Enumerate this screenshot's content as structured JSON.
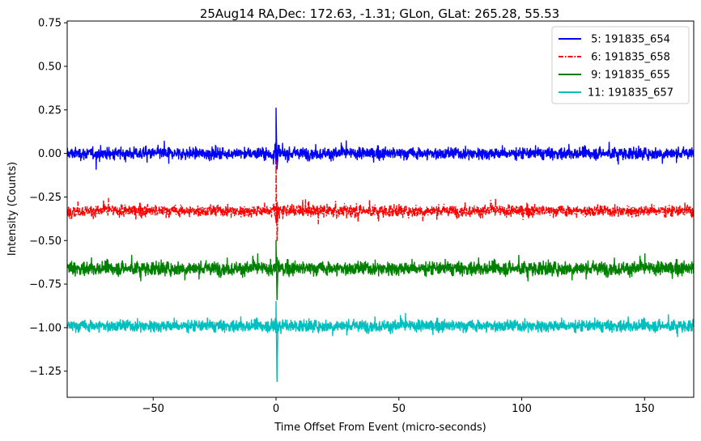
{
  "chart_data": {
    "type": "line",
    "title": "25Aug14 RA,Dec:  172.63,  -1.31; GLon, GLat:  265.28,  55.53",
    "xlabel": "Time Offset From Event (micro-seconds)",
    "ylabel": "Intensity (Counts)",
    "xlim": [
      -85,
      170
    ],
    "ylim": [
      -1.4,
      0.76
    ],
    "xticks": [
      -50,
      0,
      50,
      100,
      150
    ],
    "xtick_labels": [
      "−50",
      "0",
      "50",
      "100",
      "150"
    ],
    "yticks": [
      0.75,
      0.5,
      0.25,
      0.0,
      -0.25,
      -0.5,
      -0.75,
      -1.0,
      -1.25
    ],
    "ytick_labels": [
      "0.75",
      "0.50",
      "0.25",
      "0.00",
      "−0.25",
      "−0.50",
      "−0.75",
      "−1.00",
      "−1.25"
    ],
    "legend_position": "top-right",
    "series": [
      {
        "name": " 5: 191835_654",
        "color": "#0000ff",
        "dash": "solid",
        "baseline": 0.0,
        "noise": 0.03,
        "spike_peak": 0.26,
        "spike_min": -0.09
      },
      {
        "name": " 6: 191835_658",
        "color": "#ff0000",
        "dash": "dashdot",
        "baseline": -0.33,
        "noise": 0.03,
        "spike_peak": -0.04,
        "spike_min": -0.5
      },
      {
        "name": " 9: 191835_655",
        "color": "#008000",
        "dash": "solid",
        "baseline": -0.66,
        "noise": 0.035,
        "spike_peak": -0.5,
        "spike_min": -0.84
      },
      {
        "name": "11: 191835_657",
        "color": "#00bfbf",
        "dash": "solid",
        "baseline": -0.99,
        "noise": 0.03,
        "spike_peak": -0.85,
        "spike_min": -1.31
      }
    ]
  }
}
